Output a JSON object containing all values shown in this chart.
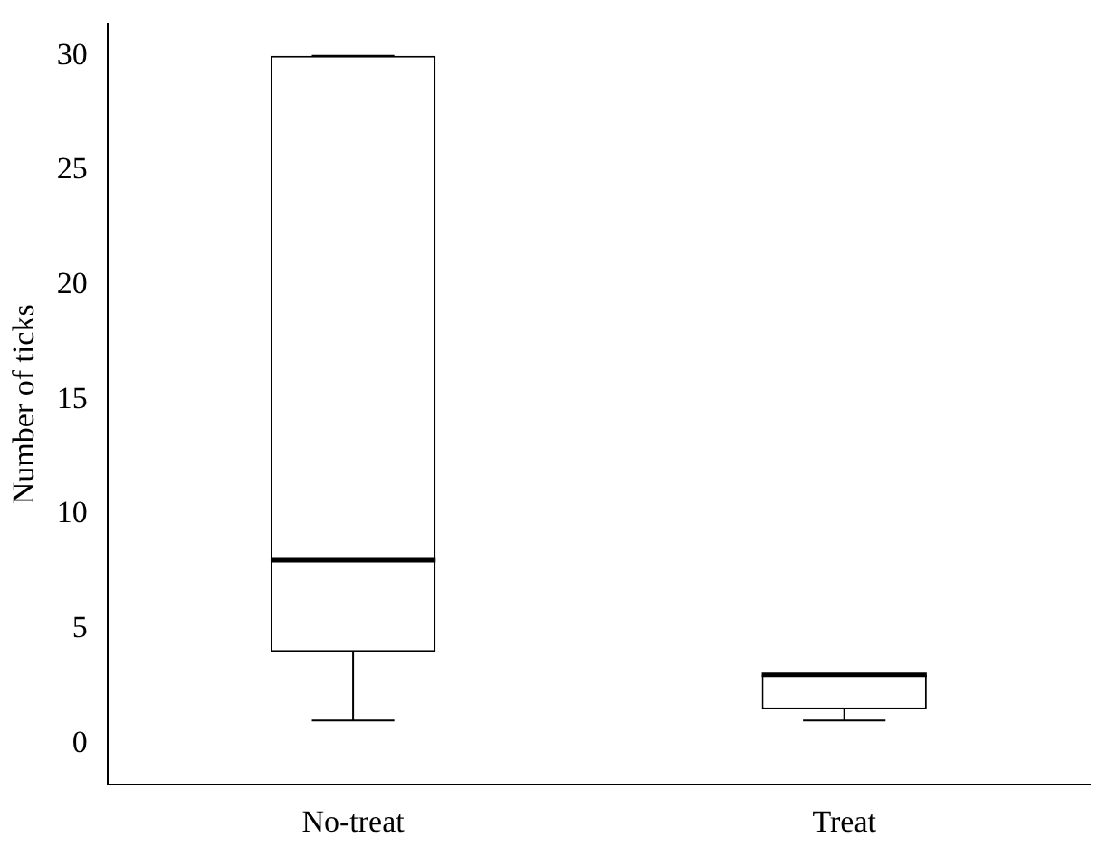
{
  "chart_data": {
    "type": "box",
    "ylabel": "Number of ticks",
    "categories": [
      "No-treat",
      "Treat"
    ],
    "boxes": [
      {
        "low": 1,
        "q1": 4,
        "median": 8,
        "q3": 30,
        "high": 30
      },
      {
        "low": 1,
        "q1": 1.5,
        "median": 3,
        "q3": 3,
        "high": 3
      }
    ],
    "color": "#000000",
    "ylim": [
      -1.8,
      31.4
    ],
    "yticks": [
      0,
      5,
      10,
      15,
      20,
      25,
      30
    ],
    "grid": false,
    "legend": false
  }
}
